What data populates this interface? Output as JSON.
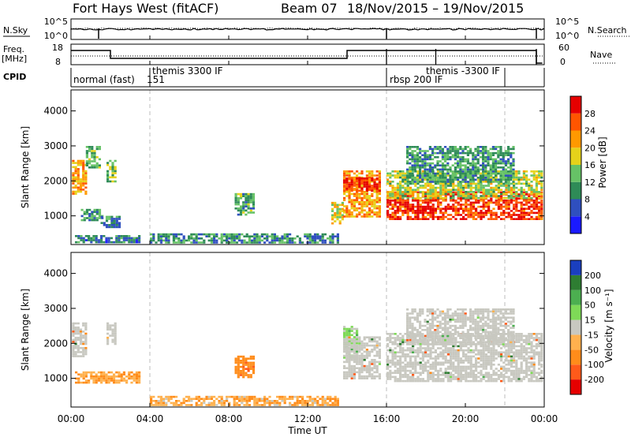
{
  "header": {
    "radar": "Fort Hays West (fitACF)",
    "beam": "Beam 07",
    "dates": "18/Nov/2015 – 19/Nov/2015"
  },
  "noise_panel": {
    "left_label": "N.Sky",
    "left_ticks": [
      "10^5",
      "10^0"
    ],
    "right_ticks": [
      "10^5",
      "10^0"
    ],
    "right_label": "N.Search"
  },
  "freq_panel": {
    "left_label_1": "Freq.",
    "left_label_2": "[MHz]",
    "left_ticks": [
      "18",
      "8"
    ],
    "right_ticks": [
      "60",
      "0"
    ],
    "right_label": "Nave"
  },
  "cpid": {
    "label": "CPID",
    "modes": [
      {
        "text": "normal (fast)",
        "row": 2
      },
      {
        "text": "151",
        "row": 2
      },
      {
        "text": "themis 3300 IF",
        "row": 1
      },
      {
        "text": "rbsp 200 IF",
        "row": 2
      },
      {
        "text": "themis -3300 IF",
        "row": 1
      }
    ]
  },
  "time_axis": {
    "title": "Time UT",
    "ticks": [
      "00:00",
      "04:00",
      "08:00",
      "12:00",
      "16:00",
      "20:00",
      "00:00"
    ]
  },
  "range_axis": {
    "title": "Slant Range [km]",
    "ticks": [
      "1000",
      "2000",
      "3000",
      "4000"
    ]
  },
  "power_scale": {
    "title": "Power [dB]",
    "labels": [
      "4",
      "8",
      "12",
      "16",
      "20",
      "24",
      "28"
    ],
    "colors": [
      "#1a1aff",
      "#2f4fbf",
      "#2e8b57",
      "#66c266",
      "#e6d21a",
      "#ff9900",
      "#ff5500",
      "#e60000"
    ]
  },
  "velocity_scale": {
    "title": "Velocity [m s⁻¹]",
    "labels": [
      "200",
      "100",
      "50",
      "15",
      "-15",
      "-50",
      "-100",
      "-200"
    ],
    "colors": [
      "#1a3fbf",
      "#2e7d32",
      "#4caf50",
      "#7ed957",
      "#c8c8c0",
      "#ffb14e",
      "#ff8c1a",
      "#ff5a1a",
      "#e60000"
    ]
  },
  "colors": {
    "gridline": "#bdbdbd",
    "panel_border": "#000000",
    "ground_scatter": "#c8c8c0"
  },
  "chart_data": [
    {
      "type": "heatmap",
      "name": "Power",
      "xlabel": "Time UT",
      "ylabel": "Slant Range [km]",
      "xlim": [
        0,
        24
      ],
      "ylim": [
        180,
        4600
      ],
      "zlabel": "Power [dB]",
      "zlim": [
        0,
        32
      ],
      "patches": [
        {
          "t0": 0.05,
          "t1": 0.75,
          "r0": 1650,
          "r1": 2600,
          "v": 21
        },
        {
          "t0": 0.75,
          "t1": 1.4,
          "r0": 2400,
          "r1": 3000,
          "v": 13
        },
        {
          "t0": 0.5,
          "t1": 1.6,
          "r0": 900,
          "r1": 1200,
          "v": 10
        },
        {
          "t0": 1.8,
          "t1": 2.3,
          "r0": 2000,
          "r1": 2600,
          "v": 15
        },
        {
          "t0": 1.5,
          "t1": 2.4,
          "r0": 700,
          "r1": 1000,
          "v": 9
        },
        {
          "t0": 0.2,
          "t1": 3.5,
          "r0": 250,
          "r1": 450,
          "v": 8
        },
        {
          "t0": 8.3,
          "t1": 9.3,
          "r0": 1050,
          "r1": 1650,
          "v": 12
        },
        {
          "t0": 4.0,
          "t1": 13.5,
          "r0": 250,
          "r1": 500,
          "v": 10
        },
        {
          "t0": 13.2,
          "t1": 13.8,
          "r0": 800,
          "r1": 1400,
          "v": 18
        },
        {
          "t0": 13.8,
          "t1": 15.6,
          "r0": 1000,
          "r1": 2300,
          "v": 22
        },
        {
          "t0": 13.8,
          "t1": 15.6,
          "r0": 1700,
          "r1": 2100,
          "v": 28
        },
        {
          "t0": 16.0,
          "t1": 23.9,
          "r0": 900,
          "r1": 1700,
          "v": 28
        },
        {
          "t0": 16.0,
          "t1": 23.9,
          "r0": 1500,
          "r1": 2300,
          "v": 16
        },
        {
          "t0": 17.0,
          "t1": 22.5,
          "r0": 2000,
          "r1": 3000,
          "v": 11
        }
      ]
    },
    {
      "type": "heatmap",
      "name": "Velocity",
      "xlabel": "Time UT",
      "ylabel": "Slant Range [km]",
      "xlim": [
        0,
        24
      ],
      "ylim": [
        180,
        4600
      ],
      "zlabel": "Velocity [m s⁻¹]",
      "zlim": [
        -250,
        250
      ],
      "patches": [
        {
          "t0": 0.05,
          "t1": 0.75,
          "r0": 1650,
          "r1": 2600,
          "v": 0,
          "ground": true
        },
        {
          "t0": 1.8,
          "t1": 2.3,
          "r0": 2000,
          "r1": 2600,
          "v": 0,
          "ground": true
        },
        {
          "t0": 0.2,
          "t1": 3.5,
          "r0": 900,
          "r1": 1200,
          "v": -45
        },
        {
          "t0": 8.3,
          "t1": 9.3,
          "r0": 1050,
          "r1": 1650,
          "v": -80
        },
        {
          "t0": 4.0,
          "t1": 13.5,
          "r0": 250,
          "r1": 500,
          "v": -40
        },
        {
          "t0": 13.8,
          "t1": 14.5,
          "r0": 1600,
          "r1": 2500,
          "v": 25
        },
        {
          "t0": 13.8,
          "t1": 15.6,
          "r0": 1000,
          "r1": 2200,
          "v": 0,
          "ground": true
        },
        {
          "t0": 16.0,
          "t1": 23.9,
          "r0": 900,
          "r1": 2300,
          "v": 0,
          "ground": true
        },
        {
          "t0": 17.0,
          "t1": 22.5,
          "r0": 2000,
          "r1": 3000,
          "v": 0,
          "ground": true
        }
      ]
    }
  ]
}
